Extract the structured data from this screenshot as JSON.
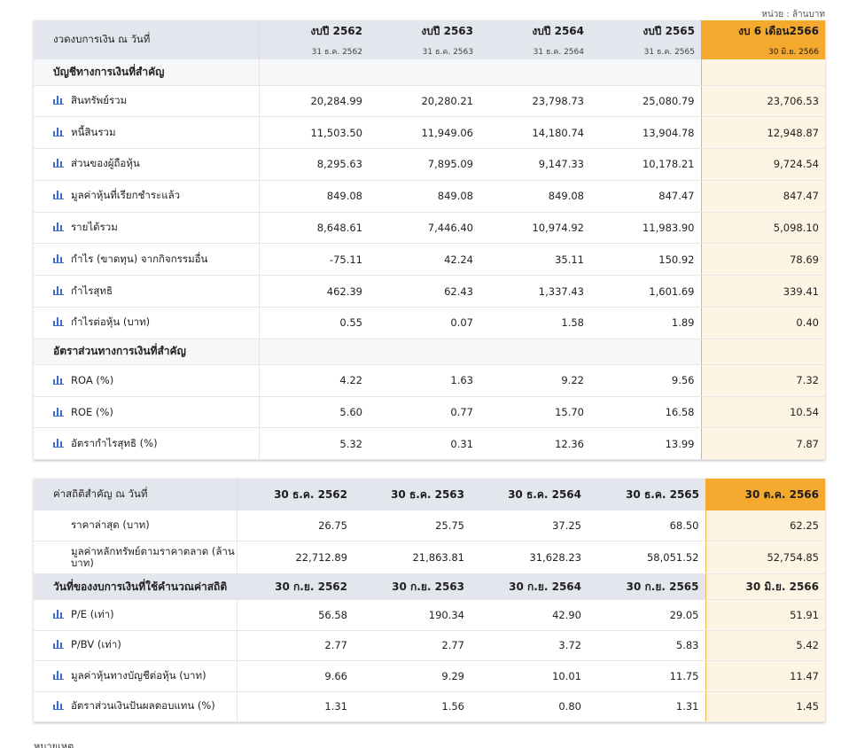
{
  "unit_note": "หน่วย : ล้านบาท",
  "colors": {
    "accent": "#f5a92f",
    "highlight_bg": "#fdf4e3",
    "header_bg": "#e3e6ec",
    "icon": "#3b6bd1"
  },
  "financial": {
    "header_label": "งวดงบการเงิน ณ วันที่",
    "columns": [
      {
        "title": "งบปี 2562",
        "date": "31 ธ.ค. 2562"
      },
      {
        "title": "งบปี 2563",
        "date": "31 ธ.ค. 2563"
      },
      {
        "title": "งบปี 2564",
        "date": "31 ธ.ค. 2564"
      },
      {
        "title": "งบปี 2565",
        "date": "31 ธ.ค. 2565"
      },
      {
        "title": "งบ 6 เดือน2566",
        "date": "30 มิ.ย. 2566"
      }
    ],
    "section1": "บัญชีทางการเงินที่สำคัญ",
    "rows1": [
      {
        "label": "สินทรัพย์รวม",
        "values": [
          "20,284.99",
          "20,280.21",
          "23,798.73",
          "25,080.79",
          "23,706.53"
        ]
      },
      {
        "label": "หนี้สินรวม",
        "values": [
          "11,503.50",
          "11,949.06",
          "14,180.74",
          "13,904.78",
          "12,948.87"
        ]
      },
      {
        "label": "ส่วนของผู้ถือหุ้น",
        "values": [
          "8,295.63",
          "7,895.09",
          "9,147.33",
          "10,178.21",
          "9,724.54"
        ]
      },
      {
        "label": "มูลค่าหุ้นที่เรียกชำระแล้ว",
        "values": [
          "849.08",
          "849.08",
          "849.08",
          "847.47",
          "847.47"
        ]
      },
      {
        "label": "รายได้รวม",
        "values": [
          "8,648.61",
          "7,446.40",
          "10,974.92",
          "11,983.90",
          "5,098.10"
        ]
      },
      {
        "label": "กำไร (ขาดทุน) จากกิจกรรมอื่น",
        "values": [
          "-75.11",
          "42.24",
          "35.11",
          "150.92",
          "78.69"
        ]
      },
      {
        "label": "กำไรสุทธิ",
        "values": [
          "462.39",
          "62.43",
          "1,337.43",
          "1,601.69",
          "339.41"
        ]
      },
      {
        "label": "กำไรต่อหุ้น (บาท)",
        "values": [
          "0.55",
          "0.07",
          "1.58",
          "1.89",
          "0.40"
        ]
      }
    ],
    "section2": "อัตราส่วนทางการเงินที่สำคัญ",
    "rows2": [
      {
        "label": "ROA (%)",
        "values": [
          "4.22",
          "1.63",
          "9.22",
          "9.56",
          "7.32"
        ]
      },
      {
        "label": "ROE (%)",
        "values": [
          "5.60",
          "0.77",
          "15.70",
          "16.58",
          "10.54"
        ]
      },
      {
        "label": "อัตรากำไรสุทธิ (%)",
        "values": [
          "5.32",
          "0.31",
          "12.36",
          "13.99",
          "7.87"
        ]
      }
    ]
  },
  "stats": {
    "header_label": "ค่าสถิติสำคัญ ณ วันที่",
    "columns": [
      "30 ธ.ค. 2562",
      "30 ธ.ค. 2563",
      "30 ธ.ค. 2564",
      "30 ธ.ค. 2565",
      "30 ต.ค. 2566"
    ],
    "rows1": [
      {
        "label": "ราคาล่าสุด (บาท)",
        "values": [
          "26.75",
          "25.75",
          "37.25",
          "68.50",
          "62.25"
        ]
      },
      {
        "label": "มูลค่าหลักทรัพย์ตามราคาตลาด (ล้านบาท)",
        "values": [
          "22,712.89",
          "21,863.81",
          "31,628.23",
          "58,051.52",
          "52,754.85"
        ]
      }
    ],
    "section_label": "วันที่ของงบการเงินที่ใช้คำนวณค่าสถิติ",
    "section_dates": [
      "30 ก.ย. 2562",
      "30 ก.ย. 2563",
      "30 ก.ย. 2564",
      "30 ก.ย. 2565",
      "30 มิ.ย. 2566"
    ],
    "rows2": [
      {
        "label": "P/E (เท่า)",
        "values": [
          "56.58",
          "190.34",
          "42.90",
          "29.05",
          "51.91"
        ]
      },
      {
        "label": "P/BV (เท่า)",
        "values": [
          "2.77",
          "2.77",
          "3.72",
          "5.83",
          "5.42"
        ]
      },
      {
        "label": "มูลค่าหุ้นทางบัญชีต่อหุ้น (บาท)",
        "values": [
          "9.66",
          "9.29",
          "10.01",
          "11.75",
          "11.47"
        ]
      },
      {
        "label": "อัตราส่วนเงินปันผลตอบแทน (%)",
        "values": [
          "1.31",
          "1.56",
          "0.80",
          "1.31",
          "1.45"
        ]
      }
    ]
  },
  "footnote": "หมายเหตุ"
}
